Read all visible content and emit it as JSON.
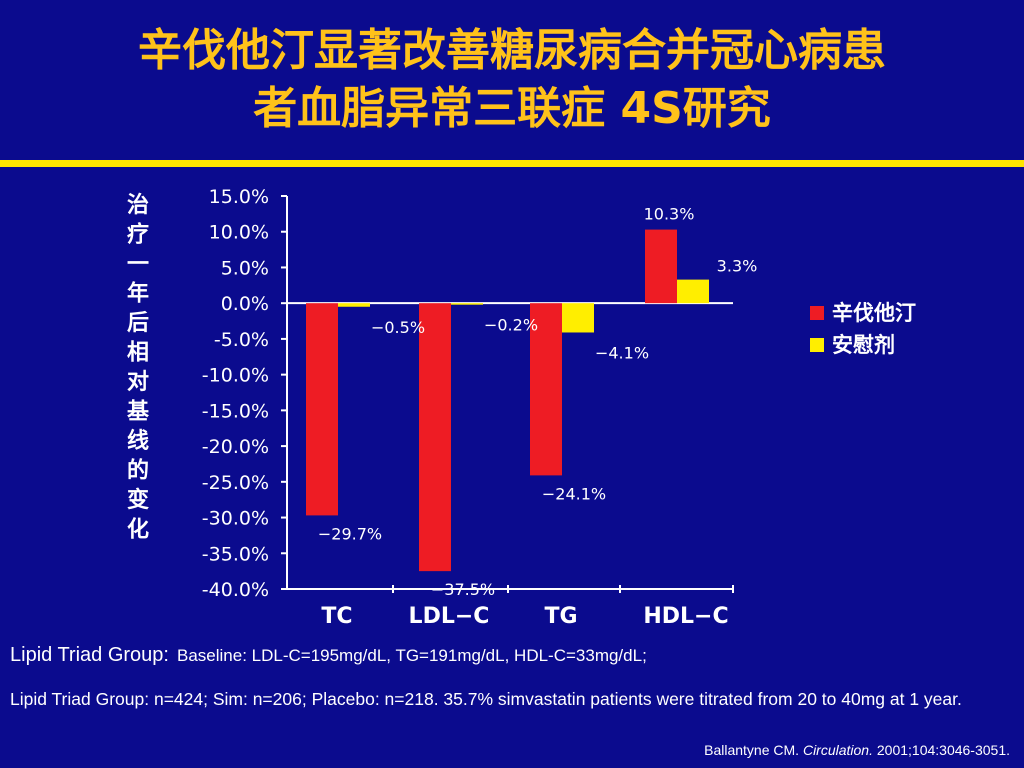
{
  "title": {
    "line1": "辛伐他汀显著改善糖尿病合并冠心病患",
    "line2": "者血脂异常三联症  4S研究"
  },
  "colors": {
    "background": "#0b0b8e",
    "title": "#ffc21a",
    "rule": "#ffe600",
    "simvastatin": "#ee1c24",
    "placebo": "#ffee00"
  },
  "chart_data": {
    "type": "bar",
    "categories": [
      "TC",
      "LDL-C",
      "TG",
      "HDL-C"
    ],
    "series": [
      {
        "name": "辛伐他汀",
        "values": [
          -29.7,
          -37.5,
          -24.1,
          10.3
        ],
        "labels": [
          "-29.7%",
          "-37.5%",
          "-24.1%",
          "10.3%"
        ]
      },
      {
        "name": "安慰剂",
        "values": [
          -0.5,
          -0.2,
          -4.1,
          3.3
        ],
        "labels": [
          "-0.5%",
          "-0.2%",
          "-4.1%",
          "3.3%"
        ]
      }
    ],
    "ylabel": "治疗一年后相对基线的变化",
    "yticks": [
      "15.0%",
      "10.0%",
      "5.0%",
      "0.0%",
      "-5.0%",
      "-10.0%",
      "-15.0%",
      "-20.0%",
      "-25.0%",
      "-30.0%",
      "-35.0%",
      "-40.0%"
    ],
    "ylim": [
      -40,
      15
    ],
    "legend_position": "right",
    "grid": false
  },
  "notes": {
    "line1_label": "Lipid Triad Group:",
    "line1_text": "Baseline: LDL-C=195mg/dL, TG=191mg/dL, HDL-C=33mg/dL;",
    "line2": "Lipid Triad Group: n=424; Sim: n=206; Placebo: n=218. 35.7% simvastatin patients were titrated from 20 to 40mg at 1 year."
  },
  "citation": {
    "author": "Ballantyne CM.",
    "journal": "Circulation.",
    "ref": "2001;104:3046-3051."
  }
}
